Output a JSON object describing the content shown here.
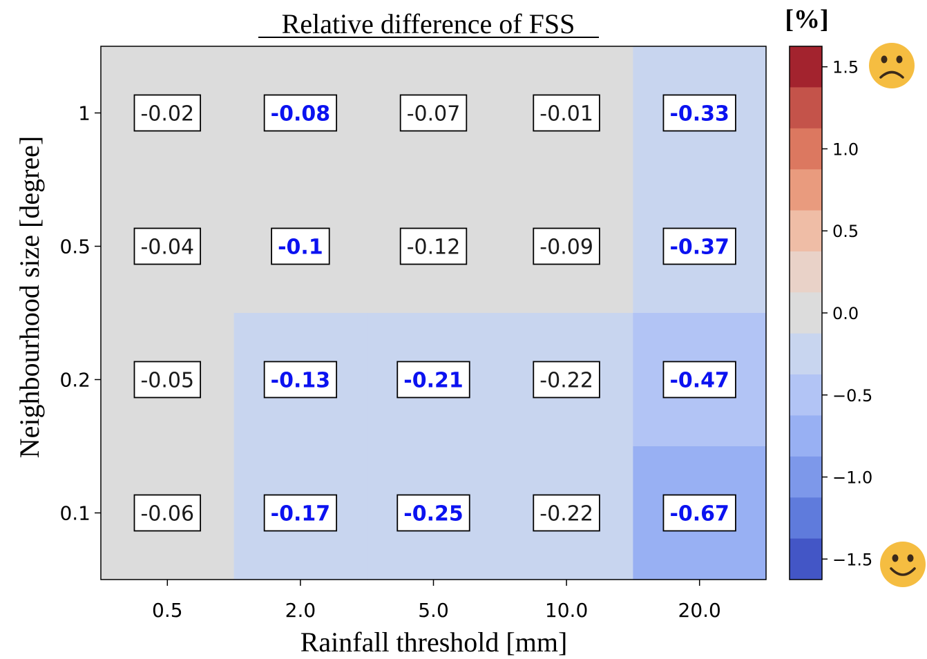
{
  "chart_data": {
    "type": "heatmap",
    "title": "Relative difference of FSS",
    "xlabel": "Rainfall threshold [mm]",
    "ylabel": "Neighbourhood size [degree]",
    "x_categories": [
      "0.5",
      "2.0",
      "5.0",
      "10.0",
      "20.0"
    ],
    "y_categories": [
      "1",
      "0.5",
      "0.2",
      "0.1"
    ],
    "values": [
      [
        -0.02,
        -0.08,
        -0.07,
        -0.01,
        -0.33
      ],
      [
        -0.04,
        -0.1,
        -0.12,
        -0.09,
        -0.37
      ],
      [
        -0.05,
        -0.13,
        -0.21,
        -0.22,
        -0.47
      ],
      [
        -0.06,
        -0.17,
        -0.25,
        -0.22,
        -0.67
      ]
    ],
    "value_labels": [
      [
        "-0.02",
        "-0.08",
        "-0.07",
        "-0.01",
        "-0.33"
      ],
      [
        "-0.04",
        "-0.1",
        "-0.12",
        "-0.09",
        "-0.37"
      ],
      [
        "-0.05",
        "-0.13",
        "-0.21",
        "-0.22",
        "-0.47"
      ],
      [
        "-0.06",
        "-0.17",
        "-0.25",
        "-0.22",
        "-0.67"
      ]
    ],
    "highlighted": [
      [
        false,
        true,
        false,
        false,
        true
      ],
      [
        false,
        true,
        false,
        false,
        true
      ],
      [
        false,
        true,
        true,
        false,
        true
      ],
      [
        false,
        true,
        true,
        false,
        true
      ]
    ],
    "colorbar": {
      "label": "[%]",
      "range": [
        -1.625,
        1.625
      ],
      "step": 0.25,
      "ticks": [
        1.5,
        1.0,
        0.5,
        0.0,
        -0.5,
        -1.0,
        -1.5
      ],
      "tick_labels": [
        "1.5",
        "1.0",
        "0.5",
        "0.0",
        "−0.5",
        "−1.0",
        "−1.5"
      ],
      "bands_top_to_bottom": [
        "#a3232e",
        "#c4534a",
        "#dc7860",
        "#e99b7e",
        "#efbda6",
        "#e9d2c8",
        "#dcdcdc",
        "#c8d5ef",
        "#b2c4f5",
        "#98b0f3",
        "#7d98ea",
        "#5f7bdc",
        "#4356c6"
      ],
      "top_icon": "frowning-face-icon",
      "bottom_icon": "smiling-face-icon"
    },
    "colors": {
      "highlight_text": "#0b12f0",
      "normal_text": "#1a1a1a",
      "face_icon": "#f5bd41"
    }
  }
}
